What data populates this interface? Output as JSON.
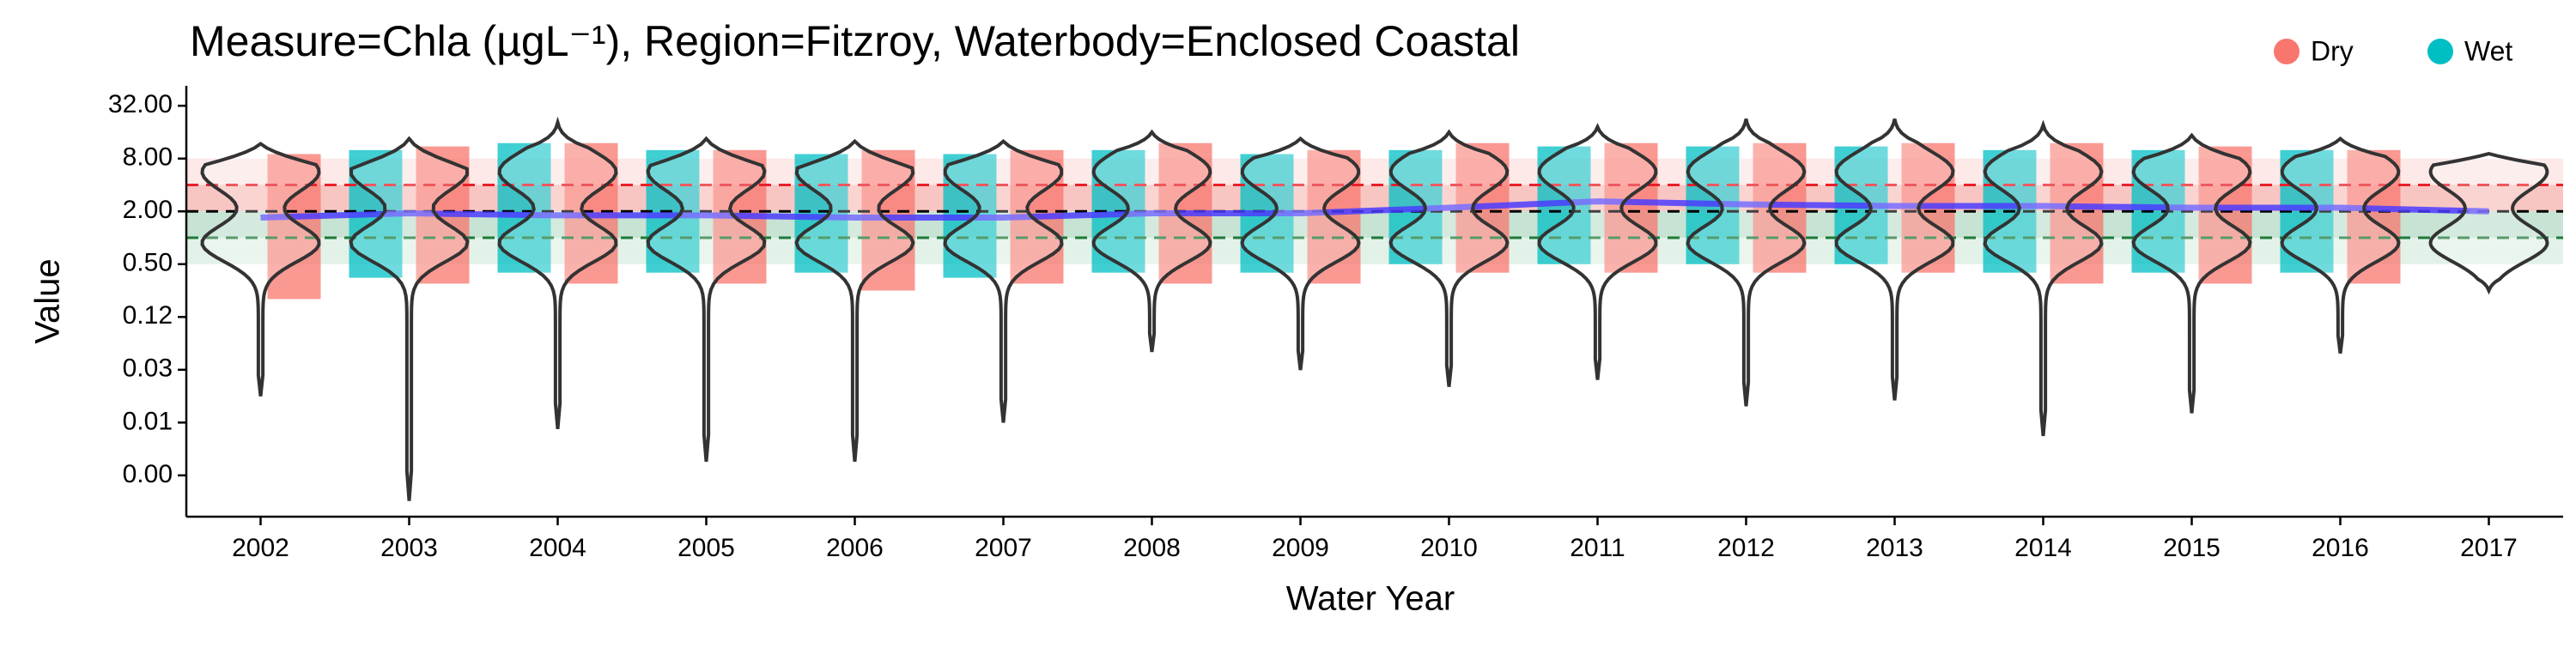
{
  "chart_data": {
    "type": "violin",
    "title": "Measure=Chla (µgL⁻¹), Region=Fitzroy, Waterbody=Enclosed Coastal",
    "xlabel": "Water Year",
    "ylabel": "Value",
    "log_scale": true,
    "legend": "top-right",
    "categories": [
      "2002",
      "2003",
      "2004",
      "2005",
      "2006",
      "2007",
      "2008",
      "2009",
      "2010",
      "2011",
      "2012",
      "2013",
      "2014",
      "2015",
      "2016",
      "2017"
    ],
    "violin_min": [
      0.0156,
      0.001,
      0.0066,
      0.0028,
      0.0028,
      0.0078,
      0.05,
      0.031,
      0.02,
      0.024,
      0.012,
      0.014,
      0.0055,
      0.01,
      0.048,
      0.25
    ],
    "violin_max": [
      11.8,
      13.5,
      20.7,
      13.5,
      12.6,
      12.6,
      16,
      13.5,
      16,
      18.4,
      22.6,
      22.6,
      19.4,
      14.7,
      13.5,
      9.1
    ],
    "violin_color": "#333333",
    "trend": [
      1.7,
      1.9,
      1.8,
      1.8,
      1.7,
      1.7,
      1.9,
      1.9,
      2.2,
      2.6,
      2.4,
      2.3,
      2.3,
      2.2,
      2.2,
      2.0
    ],
    "trend_color": "#4b3cff",
    "series": [
      {
        "name": "Dry",
        "color": "#F8766D",
        "ranges": [
          [
            0.2,
            9
          ],
          [
            0.3,
            11
          ],
          [
            0.3,
            12
          ],
          [
            0.3,
            10
          ],
          [
            0.25,
            10
          ],
          [
            0.3,
            10
          ],
          [
            0.3,
            12
          ],
          [
            0.3,
            10
          ],
          [
            0.4,
            12
          ],
          [
            0.4,
            12
          ],
          [
            0.4,
            12
          ],
          [
            0.4,
            12
          ],
          [
            0.3,
            12
          ],
          [
            0.3,
            11
          ],
          [
            0.3,
            10
          ],
          null
        ]
      },
      {
        "name": "Wet",
        "color": "#00BFC4",
        "ranges": [
          null,
          [
            0.35,
            10
          ],
          [
            0.4,
            12
          ],
          [
            0.4,
            10
          ],
          [
            0.4,
            9
          ],
          [
            0.35,
            9
          ],
          [
            0.4,
            10
          ],
          [
            0.4,
            9
          ],
          [
            0.5,
            10
          ],
          [
            0.5,
            11
          ],
          [
            0.5,
            11
          ],
          [
            0.5,
            11
          ],
          [
            0.4,
            10
          ],
          [
            0.4,
            10
          ],
          [
            0.4,
            10
          ],
          null
        ]
      }
    ],
    "reference_lines": [
      {
        "value": 4,
        "color": "#e8202a"
      },
      {
        "value": 2,
        "color": "#000000"
      },
      {
        "value": 1,
        "color": "#1e7a3a"
      }
    ],
    "bands": [
      {
        "lower": 4,
        "upper": 8,
        "color": "#fde4e2"
      },
      {
        "lower": 2,
        "upper": 4,
        "color": "#f6b8b3"
      },
      {
        "lower": 1,
        "upper": 2,
        "color": "#b9dcc8"
      },
      {
        "lower": 0.5,
        "upper": 1,
        "color": "#dcefe4"
      }
    ],
    "ylim": [
      0.00066,
      54
    ],
    "yticks": [
      {
        "value": 32,
        "label": "32.00"
      },
      {
        "value": 8,
        "label": "8.00"
      },
      {
        "value": 2,
        "label": "2.00"
      },
      {
        "value": 0.5,
        "label": "0.50"
      },
      {
        "value": 0.125,
        "label": "0.12"
      },
      {
        "value": 0.03125,
        "label": "0.03"
      },
      {
        "value": 0.0078125,
        "label": "0.01"
      },
      {
        "value": 0.001953125,
        "label": "0.00"
      }
    ]
  }
}
